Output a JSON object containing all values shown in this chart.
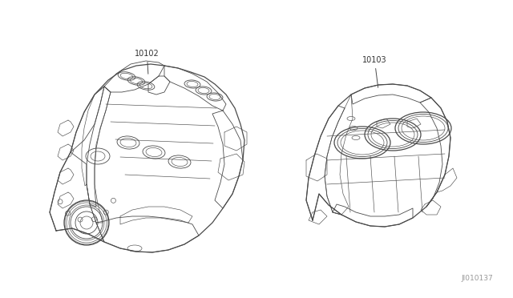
{
  "background_color": "#ffffff",
  "fig_width": 6.4,
  "fig_height": 3.72,
  "dpi": 100,
  "diagram_id": "JI010137",
  "diagram_id_color": "#999999",
  "label1": "10102",
  "label2": "10103",
  "line_color": "#4a4a4a",
  "text_color": "#333333",
  "label_fontsize": 7.0
}
